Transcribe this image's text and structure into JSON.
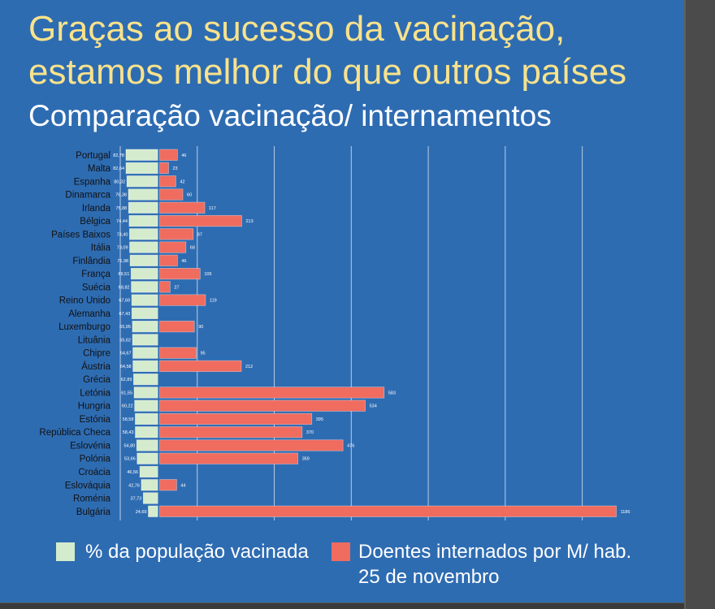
{
  "colors": {
    "background": "#2e6cb2",
    "title": "#f8e28b",
    "subtitle": "#ffffff",
    "category_labels": "#111111",
    "data_labels": "#ffffff",
    "vaccinated": "#d4eccd",
    "hospitalized": "#ef6c5f",
    "gridlines": "#b9cde6"
  },
  "chart_data": {
    "type": "bar",
    "orientation": "horizontal",
    "title": "Graças ao sucesso da vacinação,\nestamos melhor do que outros países",
    "subtitle": "Comparação vacinação/ internamentos",
    "categories": [
      "Portugal",
      "Malta",
      "Espanha",
      "Dinamarca",
      "Irlanda",
      "Bélgica",
      "Países Baixos",
      "Itália",
      "Finlândia",
      "França",
      "Suécia",
      "Reino Unido",
      "Alemanha",
      "Luxemburgo",
      "Lituânia",
      "Chipre",
      "Áustria",
      "Grécia",
      "Letónia",
      "Hungria",
      "Estónia",
      "República Checa",
      "Eslovénia",
      "Polónia",
      "Croácia",
      "Eslováquia",
      "Roménia",
      "Bulgária"
    ],
    "series": [
      {
        "name": "% da população vacinada",
        "values": [
          82.78,
          82.64,
          80.32,
          76.38,
          75.88,
          74.44,
          73.4,
          73.09,
          71.98,
          69.51,
          68.82,
          67.69,
          67.43,
          65.95,
          65.62,
          64.67,
          64.58,
          62.89,
          61.55,
          60.22,
          58.58,
          58.43,
          54.8,
          53.66,
          46.56,
          42.76,
          37.73,
          24.69
        ]
      },
      {
        "name": "Doentes internados por M/ hab.\n25 de novembro",
        "values": [
          46,
          23,
          42,
          60,
          117,
          213,
          87,
          68,
          46,
          105,
          27,
          119,
          null,
          90,
          null,
          95,
          212,
          null,
          583,
          534,
          395,
          370,
          476,
          359,
          null,
          44,
          null,
          1186
        ]
      }
    ],
    "xlim": [
      -100,
      1200
    ],
    "grid": true,
    "grid_step": 200,
    "legend": "bottom"
  }
}
